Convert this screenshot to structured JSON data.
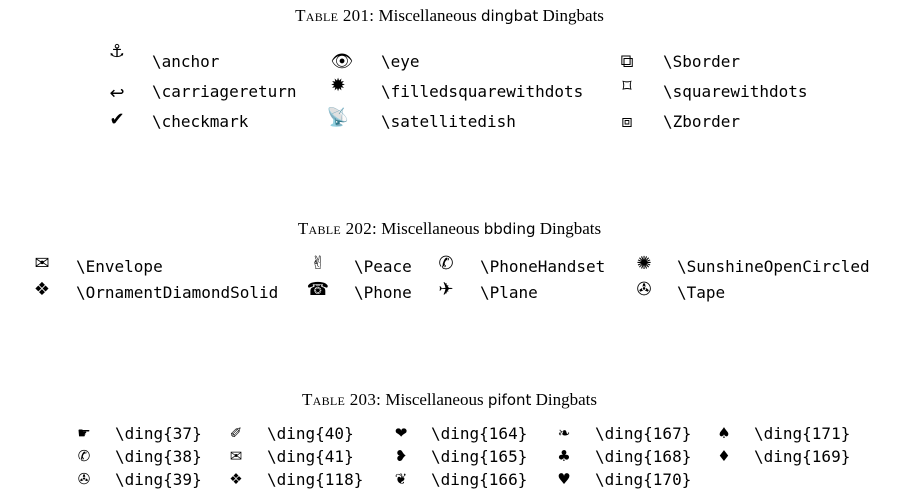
{
  "tables": [
    {
      "label": "Table 201:",
      "pre": "Miscellaneous",
      "package": "dingbat",
      "post": "Dingbats",
      "rows": [
        [
          {
            "glyph": "⚓",
            "icon": "anchor-icon",
            "command": "\\anchor"
          },
          {
            "glyph": "👁",
            "icon": "eye-icon",
            "command": "\\eye"
          },
          {
            "glyph": "⧉",
            "icon": "s-border-icon",
            "command": "\\Sborder"
          }
        ],
        [
          {
            "glyph": "↩",
            "icon": "carriage-return-icon",
            "command": "\\carriagereturn"
          },
          {
            "glyph": "✹",
            "icon": "filled-square-with-dots-icon",
            "command": "\\filledsquarewithdots"
          },
          {
            "glyph": "⌑",
            "icon": "square-with-dots-icon",
            "command": "\\squarewithdots"
          }
        ],
        [
          {
            "glyph": "✔",
            "icon": "checkmark-icon",
            "command": "\\checkmark"
          },
          {
            "glyph": "📡",
            "icon": "satellite-dish-icon",
            "command": "\\satellitedish"
          },
          {
            "glyph": "⧈",
            "icon": "z-border-icon",
            "command": "\\Zborder"
          }
        ]
      ]
    },
    {
      "label": "Table 202:",
      "pre": "Miscellaneous",
      "package": "bbding",
      "post": "Dingbats",
      "rows": [
        [
          {
            "glyph": "✉",
            "icon": "envelope-icon",
            "command": "\\Envelope"
          },
          {
            "glyph": "✌",
            "icon": "peace-icon",
            "command": "\\Peace"
          },
          {
            "glyph": "✆",
            "icon": "phone-handset-icon",
            "command": "\\PhoneHandset"
          },
          {
            "glyph": "✺",
            "icon": "sunshine-open-circled-icon",
            "command": "\\SunshineOpenCircled"
          }
        ],
        [
          {
            "glyph": "❖",
            "icon": "ornament-diamond-solid-icon",
            "command": "\\OrnamentDiamondSolid"
          },
          {
            "glyph": "☎",
            "icon": "phone-icon",
            "command": "\\Phone"
          },
          {
            "glyph": "✈",
            "icon": "plane-icon",
            "command": "\\Plane"
          },
          {
            "glyph": "✇",
            "icon": "tape-icon",
            "command": "\\Tape"
          }
        ]
      ]
    },
    {
      "label": "Table 203:",
      "pre": "Miscellaneous",
      "package": "pifont",
      "post": "Dingbats",
      "rows": [
        [
          {
            "glyph": "☛",
            "icon": "hand-pointer-icon",
            "command": "\\ding{37}"
          },
          {
            "glyph": "✐",
            "icon": "pencil-icon",
            "command": "\\ding{40}"
          },
          {
            "glyph": "❤",
            "icon": "heart-icon",
            "command": "\\ding{164}"
          },
          {
            "glyph": "❧",
            "icon": "floral-heart-icon",
            "command": "\\ding{167}"
          },
          {
            "glyph": "♠",
            "icon": "spade-icon",
            "command": "\\ding{171}"
          }
        ],
        [
          {
            "glyph": "✆",
            "icon": "phone-handset-icon",
            "command": "\\ding{38}"
          },
          {
            "glyph": "✉",
            "icon": "envelope-icon",
            "command": "\\ding{41}"
          },
          {
            "glyph": "❥",
            "icon": "rotated-heart-icon",
            "command": "\\ding{165}"
          },
          {
            "glyph": "♣",
            "icon": "club-icon",
            "command": "\\ding{168}"
          },
          {
            "glyph": "♦",
            "icon": "diamond-icon",
            "command": "\\ding{169}"
          }
        ],
        [
          {
            "glyph": "✇",
            "icon": "tape-drive-icon",
            "command": "\\ding{39}"
          },
          {
            "glyph": "❖",
            "icon": "black-diamond-minus-white-x-icon",
            "command": "\\ding{118}"
          },
          {
            "glyph": "❦",
            "icon": "floral-heart-bullet-icon",
            "command": "\\ding{166}"
          },
          {
            "glyph": "♥",
            "icon": "heart-suit-icon",
            "command": "\\ding{170}"
          }
        ]
      ]
    }
  ]
}
